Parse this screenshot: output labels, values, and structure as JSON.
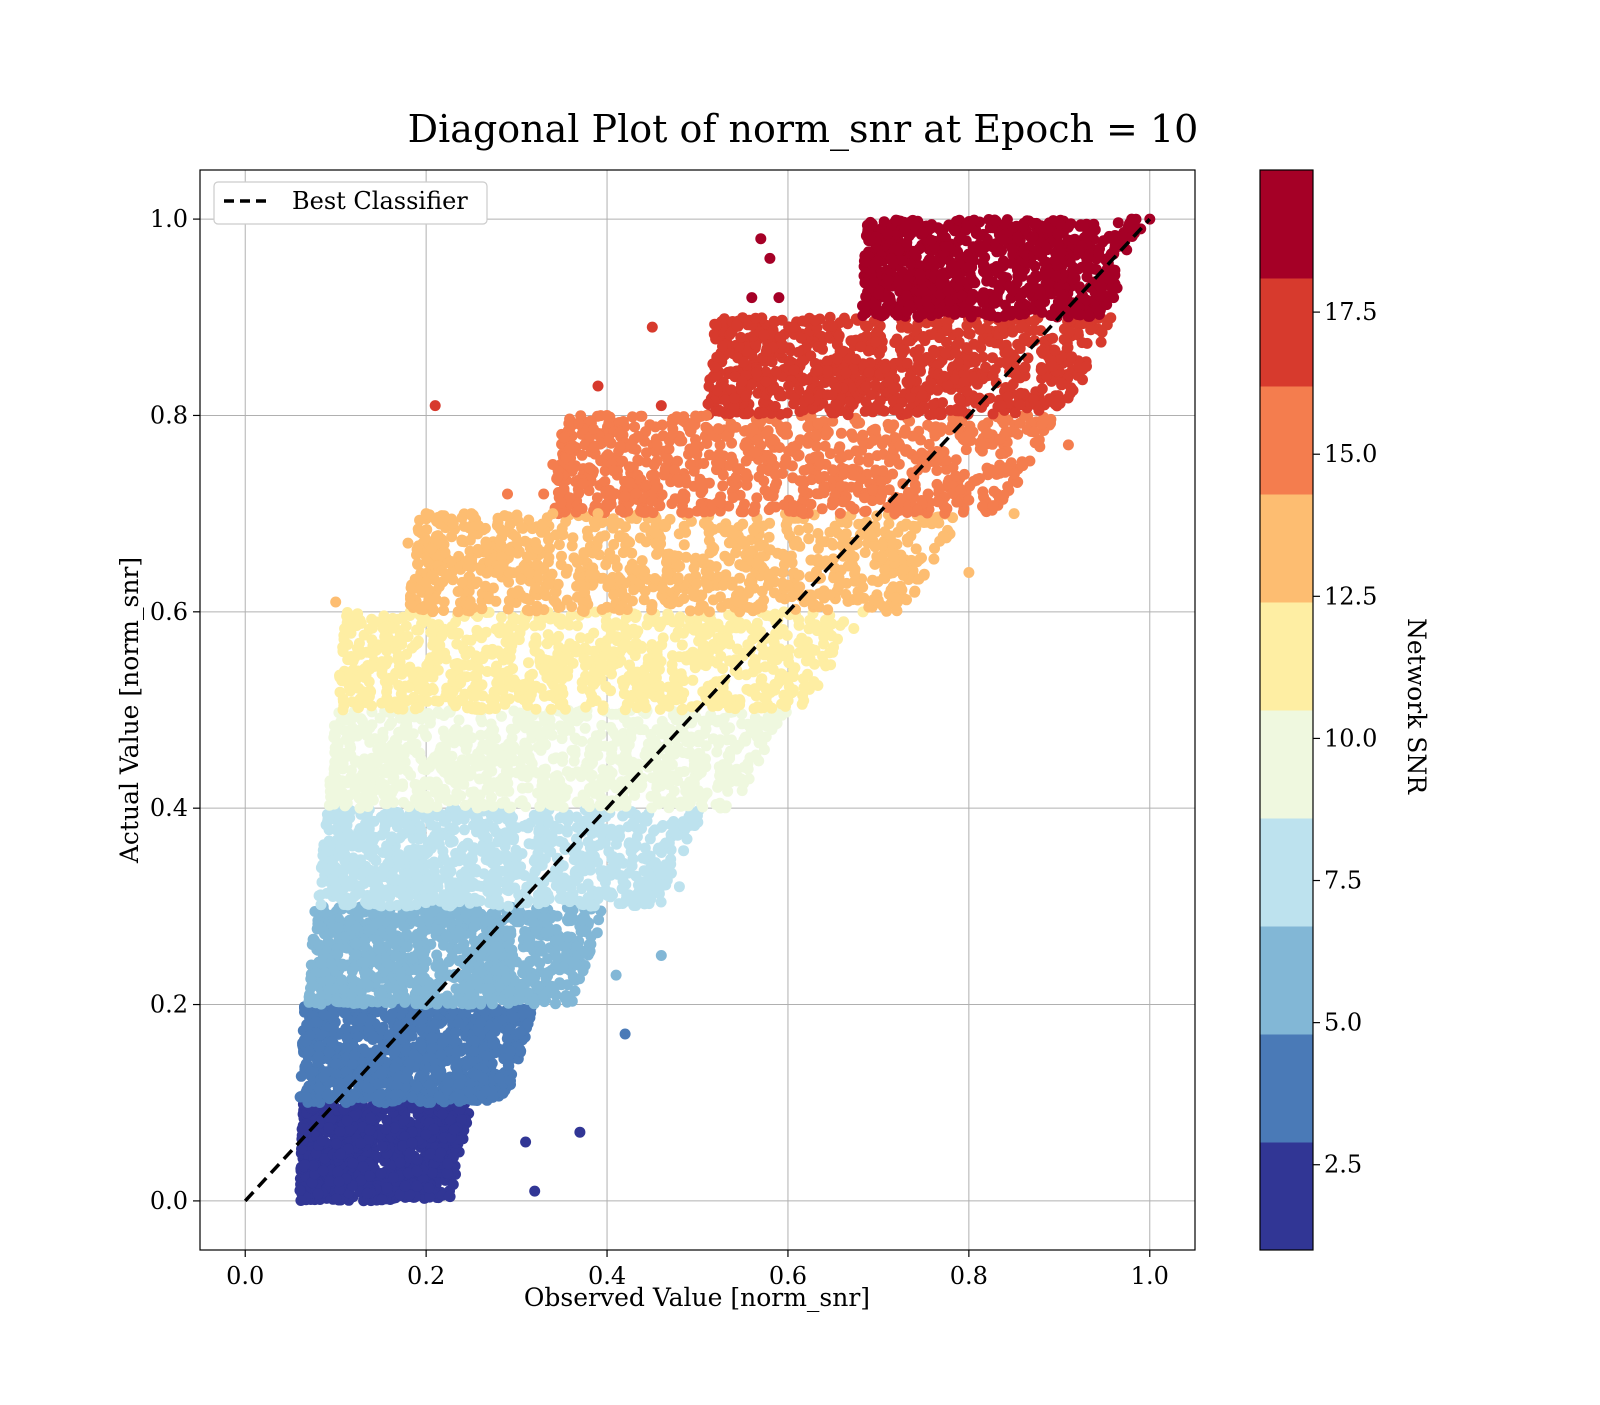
{
  "chart_data": {
    "type": "scatter",
    "title": "Diagonal Plot of norm_snr at Epoch = 10",
    "xlabel": "Observed Value [norm_snr]",
    "ylabel": "Actual Value [norm_snr]",
    "xlim": [
      -0.05,
      1.05
    ],
    "ylim": [
      -0.05,
      1.05
    ],
    "xticks": [
      "0.0",
      "0.2",
      "0.4",
      "0.6",
      "0.8",
      "1.0"
    ],
    "yticks": [
      "0.0",
      "0.2",
      "0.4",
      "0.6",
      "0.8",
      "1.0"
    ],
    "grid": true,
    "legend": {
      "position": "top-left",
      "entries": [
        "Best Classifier"
      ]
    },
    "reference_line": {
      "name": "Best Classifier",
      "style": "dashed",
      "color": "#000000",
      "from": [
        0,
        0
      ],
      "to": [
        1,
        1
      ]
    },
    "colorbar": {
      "label": "Network SNR",
      "range": [
        1.0,
        20.0
      ],
      "ticks": [
        "2.5",
        "5.0",
        "7.5",
        "10.0",
        "12.5",
        "15.0",
        "17.5"
      ],
      "colors": [
        "#313695",
        "#4a7ab7",
        "#82b7d6",
        "#bde2ee",
        "#eff8df",
        "#feeea3",
        "#fdbd71",
        "#f47d4e",
        "#d73a2d",
        "#a50026"
      ]
    },
    "bands": [
      {
        "actual_range": [
          0.0,
          0.1
        ],
        "observed_range": [
          0.06,
          0.25
        ],
        "color": "#313695"
      },
      {
        "actual_range": [
          0.1,
          0.2
        ],
        "observed_range": [
          0.06,
          0.32
        ],
        "color": "#4a7ab7"
      },
      {
        "actual_range": [
          0.2,
          0.3
        ],
        "observed_range": [
          0.07,
          0.4
        ],
        "color": "#82b7d6"
      },
      {
        "actual_range": [
          0.3,
          0.4
        ],
        "observed_range": [
          0.08,
          0.51
        ],
        "color": "#bde2ee"
      },
      {
        "actual_range": [
          0.4,
          0.5
        ],
        "observed_range": [
          0.09,
          0.6
        ],
        "color": "#eff8df"
      },
      {
        "actual_range": [
          0.5,
          0.6
        ],
        "observed_range": [
          0.1,
          0.69
        ],
        "color": "#feeea3"
      },
      {
        "actual_range": [
          0.6,
          0.7
        ],
        "observed_range": [
          0.18,
          0.8
        ],
        "color": "#fdbd71"
      },
      {
        "actual_range": [
          0.7,
          0.8
        ],
        "observed_range": [
          0.34,
          0.9
        ],
        "color": "#f47d4e"
      },
      {
        "actual_range": [
          0.8,
          0.9
        ],
        "observed_range": [
          0.51,
          0.96
        ],
        "color": "#d73a2d"
      },
      {
        "actual_range": [
          0.9,
          1.0
        ],
        "observed_range": [
          0.68,
          0.99
        ],
        "color": "#a50026"
      }
    ],
    "outliers": [
      [
        0.21,
        0.81
      ],
      [
        0.39,
        0.83
      ],
      [
        0.4,
        0.8
      ],
      [
        0.45,
        0.89
      ],
      [
        0.46,
        0.81
      ],
      [
        0.51,
        0.8
      ],
      [
        0.34,
        0.75
      ],
      [
        0.2,
        0.7
      ],
      [
        0.25,
        0.7
      ],
      [
        0.29,
        0.72
      ],
      [
        0.33,
        0.72
      ],
      [
        0.34,
        0.7
      ],
      [
        0.39,
        0.7
      ],
      [
        0.1,
        0.61
      ],
      [
        0.18,
        0.67
      ],
      [
        0.23,
        0.69
      ],
      [
        0.2,
        0.63
      ],
      [
        0.22,
        0.61
      ],
      [
        0.24,
        0.63
      ],
      [
        0.37,
        0.07
      ],
      [
        0.32,
        0.01
      ],
      [
        0.31,
        0.06
      ],
      [
        0.42,
        0.17
      ],
      [
        0.41,
        0.23
      ],
      [
        0.48,
        0.32
      ],
      [
        0.46,
        0.25
      ],
      [
        0.98,
        1.0
      ],
      [
        1.0,
        1.0
      ],
      [
        0.99,
        0.99
      ],
      [
        0.96,
        0.92
      ],
      [
        0.93,
        0.85
      ],
      [
        0.91,
        0.77
      ],
      [
        0.85,
        0.7
      ],
      [
        0.57,
        0.98
      ],
      [
        0.58,
        0.96
      ],
      [
        0.59,
        0.92
      ],
      [
        0.56,
        0.92
      ],
      [
        0.8,
        0.64
      ],
      [
        0.74,
        0.62
      ],
      [
        0.6,
        0.53
      ]
    ]
  }
}
